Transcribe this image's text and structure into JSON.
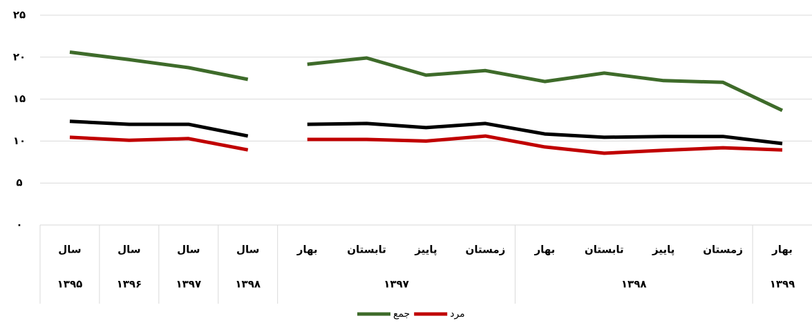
{
  "chart_data": {
    "type": "line",
    "categories": [
      "سال",
      "سال",
      "سال",
      "سال",
      "بهار",
      "تابستان",
      "پاییز",
      "زمستان",
      "بهار",
      "تابستان",
      "پاییز",
      "زمستان",
      "بهار"
    ],
    "groups": [
      {
        "label": "۱۳۹۵",
        "span": 1
      },
      {
        "label": "۱۳۹۶",
        "span": 1
      },
      {
        "label": "۱۳۹۷",
        "span": 1
      },
      {
        "label": "۱۳۹۸",
        "span": 1
      },
      {
        "label": "۱۳۹۷",
        "span": 4
      },
      {
        "label": "۱۳۹۸",
        "span": 4
      },
      {
        "label": "۱۳۹۹",
        "span": 1
      }
    ],
    "series": [
      {
        "name": "جمع",
        "color": "#3e6b2a",
        "values": [
          20.6,
          19.7,
          18.75,
          17.35,
          null,
          null,
          null,
          null,
          null,
          null,
          null,
          null,
          null
        ]
      },
      {
        "color": "#3e6b2a",
        "values": [
          null,
          null,
          null,
          null,
          19.15,
          19.9,
          17.85,
          18.4,
          17.1,
          18.1,
          17.2,
          17.0,
          13.65
        ]
      },
      {
        "color": "#000000",
        "values": [
          12.35,
          12.0,
          12.0,
          10.6,
          null,
          null,
          null,
          null,
          null,
          null,
          null,
          null,
          null
        ]
      },
      {
        "color": "#000000",
        "values": [
          null,
          null,
          null,
          null,
          12.0,
          12.1,
          11.6,
          12.1,
          10.85,
          10.45,
          10.55,
          10.55,
          9.7
        ]
      },
      {
        "name": "مرد",
        "color": "#c00000",
        "values": [
          10.45,
          10.1,
          10.3,
          8.95,
          null,
          null,
          null,
          null,
          null,
          null,
          null,
          null,
          null
        ]
      },
      {
        "color": "#c00000",
        "values": [
          null,
          null,
          null,
          null,
          10.2,
          10.2,
          10.0,
          10.6,
          9.3,
          8.55,
          8.9,
          9.2,
          8.95
        ]
      }
    ],
    "ylim": [
      0,
      25
    ],
    "yticks": [
      {
        "value": 0,
        "label": "۰"
      },
      {
        "value": 5,
        "label": "۵"
      },
      {
        "value": 10,
        "label": "۱۰"
      },
      {
        "value": 15,
        "label": "۱۵"
      },
      {
        "value": 20,
        "label": "۲۰"
      },
      {
        "value": 25,
        "label": "۲۵"
      }
    ],
    "grid": true
  }
}
